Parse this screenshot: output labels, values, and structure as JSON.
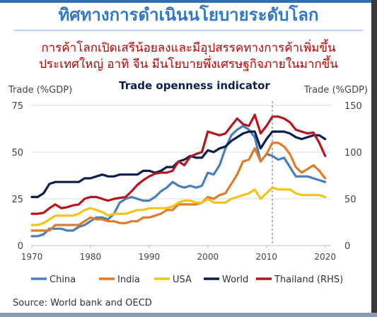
{
  "slide": {
    "header": "ทิศทางการดำเนินนโยบายระดับโลก",
    "subtitle_line1": "การค้าโลกเปิดเสรีน้อยลงและมีอุปสรรคทางการค้าเพิ่มขึ้น",
    "subtitle_line2": "ประเทศใหญ่ อาทิ จีน มีนโยบายพึ่งเศรษฐกิจภายในมากขึ้น",
    "source": "Source: World bank and OECD"
  },
  "colors": {
    "header": "#2f78c4",
    "subtitle": "#c00000",
    "China": "#4a7ebb",
    "India": "#e07b2a",
    "USA": "#f2c318",
    "World": "#0b1f4d",
    "Thailand (RHS)": "#b8141c"
  },
  "chart_data": {
    "type": "line",
    "title": "Trade openness indicator",
    "ylabel_left": "Trade (%GDP)",
    "ylabel_right": "Trade (%GDP)",
    "ylim_left": [
      0,
      75
    ],
    "ylim_right": [
      0,
      150
    ],
    "xlim": [
      1970,
      2021
    ],
    "x_ticks": [
      1970,
      1980,
      1990,
      2000,
      2010,
      2020
    ],
    "y_ticks_left": [
      0,
      25,
      50,
      75
    ],
    "y_ticks_right": [
      0,
      50,
      100,
      150
    ],
    "grid": "horizontal",
    "legend_position": "bottom",
    "annotations": [
      {
        "type": "vertical-dashed-line",
        "x": 2011
      }
    ],
    "x": [
      1970,
      1971,
      1972,
      1973,
      1974,
      1975,
      1976,
      1977,
      1978,
      1979,
      1980,
      1981,
      1982,
      1983,
      1984,
      1985,
      1986,
      1987,
      1988,
      1989,
      1990,
      1991,
      1992,
      1993,
      1994,
      1995,
      1996,
      1997,
      1998,
      1999,
      2000,
      2001,
      2002,
      2003,
      2004,
      2005,
      2006,
      2007,
      2008,
      2009,
      2010,
      2011,
      2012,
      2013,
      2014,
      2015,
      2016,
      2017,
      2018,
      2019,
      2020
    ],
    "series": [
      {
        "name": "China",
        "axis": "left",
        "values": [
          5,
          5,
          6,
          9,
          9,
          9,
          8,
          8,
          10,
          11,
          13,
          15,
          15,
          14,
          17,
          23,
          25,
          26,
          25,
          24,
          24,
          26,
          29,
          31,
          34,
          32,
          31,
          32,
          31,
          32,
          39,
          38,
          43,
          52,
          59,
          62,
          64,
          62,
          58,
          45,
          49,
          48,
          46,
          47,
          42,
          37,
          37,
          37,
          36,
          35,
          34
        ]
      },
      {
        "name": "India",
        "axis": "left",
        "values": [
          8,
          8,
          8,
          8,
          11,
          11,
          11,
          11,
          11,
          13,
          15,
          14,
          14,
          13,
          13,
          12,
          12,
          13,
          13,
          15,
          15,
          16,
          17,
          19,
          19,
          22,
          22,
          22,
          22,
          23,
          26,
          25,
          27,
          28,
          33,
          38,
          45,
          46,
          52,
          45,
          49,
          55,
          55,
          53,
          49,
          42,
          39,
          41,
          43,
          40,
          36
        ]
      },
      {
        "name": "USA",
        "axis": "left",
        "values": [
          11,
          11,
          12,
          14,
          16,
          16,
          16,
          16,
          17,
          19,
          20,
          19,
          18,
          16,
          17,
          17,
          17,
          18,
          19,
          19,
          20,
          20,
          20,
          20,
          21,
          23,
          24,
          24,
          23,
          23,
          25,
          23,
          23,
          23,
          25,
          26,
          27,
          28,
          30,
          25,
          28,
          31,
          30,
          30,
          30,
          28,
          27,
          27,
          27,
          27,
          26
        ]
      },
      {
        "name": "World",
        "axis": "left",
        "values": [
          26,
          26,
          28,
          33,
          34,
          34,
          34,
          34,
          34,
          36,
          36,
          37,
          38,
          37,
          37,
          38,
          38,
          38,
          38,
          40,
          40,
          39,
          40,
          42,
          42,
          45,
          46,
          48,
          47,
          47,
          51,
          50,
          52,
          53,
          56,
          58,
          60,
          61,
          61,
          52,
          57,
          61,
          61,
          61,
          60,
          58,
          57,
          58,
          59,
          59,
          57
        ]
      },
      {
        "name": "Thailand (RHS)",
        "axis": "right",
        "values": [
          34,
          34,
          35,
          40,
          44,
          40,
          41,
          43,
          44,
          50,
          52,
          52,
          50,
          48,
          50,
          51,
          52,
          58,
          65,
          70,
          74,
          77,
          78,
          78,
          80,
          90,
          86,
          95,
          98,
          100,
          122,
          120,
          118,
          120,
          128,
          136,
          130,
          128,
          140,
          120,
          128,
          138,
          138,
          136,
          132,
          124,
          122,
          120,
          121,
          110,
          96
        ]
      }
    ],
    "source": "Source: World bank and OECD"
  }
}
